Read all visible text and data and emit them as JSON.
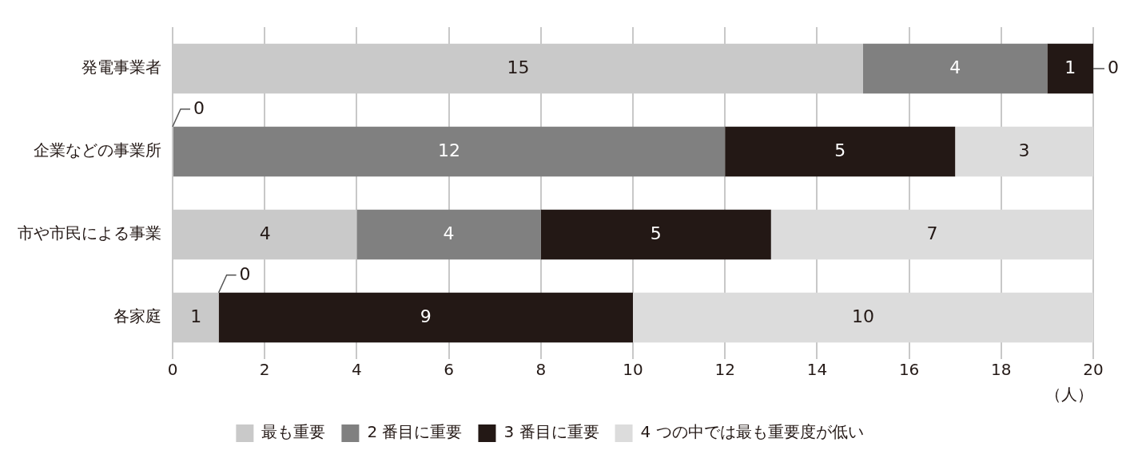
{
  "chart_data": {
    "type": "bar",
    "orientation": "horizontal",
    "stacked": true,
    "categories": [
      "発電事業者",
      "企業などの事業所",
      "市や市民による事業",
      "各家庭"
    ],
    "series": [
      {
        "name": "最も重要",
        "color": "#c9c9c9",
        "values": [
          15,
          0,
          4,
          1
        ],
        "value_labels": [
          "15",
          null,
          "4",
          "1"
        ]
      },
      {
        "name": "2 番目に重要",
        "color": "#808080",
        "values": [
          4,
          12,
          4,
          0
        ],
        "value_labels": [
          "4",
          "12",
          "4",
          null
        ]
      },
      {
        "name": "3 番目に重要",
        "color": "#231815",
        "values": [
          1,
          5,
          5,
          9
        ],
        "value_labels": [
          "1",
          "5",
          "5",
          "9"
        ]
      },
      {
        "name": "4 つの中では最も重要度が低い",
        "color": "#dcdcdc",
        "values": [
          0,
          3,
          7,
          10
        ],
        "value_labels": [
          null,
          "3",
          "7",
          "10"
        ]
      }
    ],
    "annotations": [
      {
        "text": "0",
        "x": 20,
        "y": "発電事業者"
      },
      {
        "text": "0",
        "x": 0,
        "y": "企業などの事業所"
      },
      {
        "text": "0",
        "x": 1,
        "y": "各家庭"
      }
    ],
    "xlim": [
      0,
      20
    ],
    "xticks": [
      0,
      2,
      4,
      6,
      8,
      10,
      12,
      14,
      16,
      18,
      20
    ],
    "xlabel": "（人）",
    "grid": "x",
    "legend": "bottom"
  }
}
